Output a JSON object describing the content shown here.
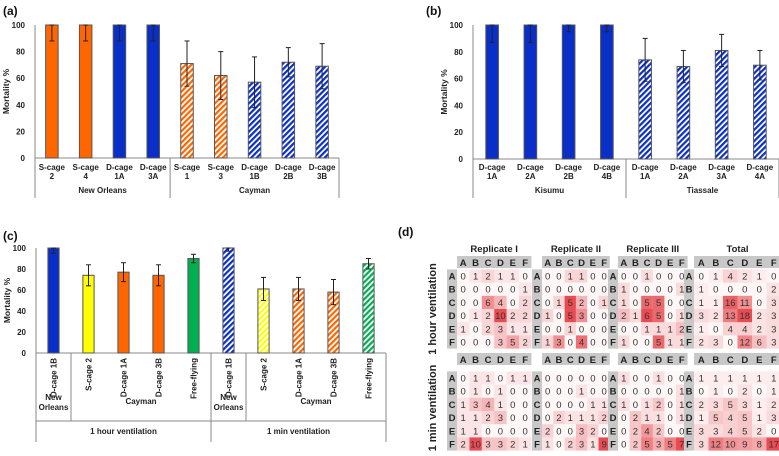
{
  "panel_labels": {
    "a": "(a)",
    "b": "(b)",
    "c": "(c)",
    "d": "(d)"
  },
  "colors": {
    "orange": "#ff6600",
    "blue": "#0a2fc8",
    "yellow": "#ffff00",
    "green": "#00b050",
    "heat": "#e5393f",
    "header_gray": "#c8c8c8"
  },
  "chart_data": [
    {
      "id": "a",
      "type": "bar",
      "ylabel": "Mortality %",
      "ylim": [
        0,
        100
      ],
      "yticks": [
        0,
        20,
        40,
        60,
        80,
        100
      ],
      "categories": [
        [
          "S-cage",
          "2"
        ],
        [
          "S-cage",
          "4"
        ],
        [
          "D-cage",
          "1A"
        ],
        [
          "D-cage",
          "3A"
        ],
        [
          "S-cage",
          "1"
        ],
        [
          "S-cage",
          "3"
        ],
        [
          "D-cage",
          "1B"
        ],
        [
          "D-cage",
          "2B"
        ],
        [
          "D-cage",
          "3B"
        ]
      ],
      "values": [
        100,
        100,
        100,
        100,
        71,
        62,
        57,
        72,
        69
      ],
      "errors": [
        12,
        12,
        12,
        12,
        17,
        18,
        19,
        11,
        17
      ],
      "colors": [
        "orange",
        "orange",
        "blue",
        "blue",
        "orange",
        "orange",
        "blue",
        "blue",
        "blue"
      ],
      "hatched": [
        false,
        false,
        false,
        false,
        true,
        true,
        true,
        true,
        true
      ],
      "groups": [
        {
          "label": [
            "New Orleans"
          ],
          "span": 4
        },
        {
          "label": [
            "Cayman"
          ],
          "span": 5
        }
      ]
    },
    {
      "id": "b",
      "type": "bar",
      "ylabel": "Mortality %",
      "ylim": [
        0,
        100
      ],
      "yticks": [
        0,
        20,
        40,
        60,
        80,
        100
      ],
      "categories": [
        [
          "D-cage",
          "1A"
        ],
        [
          "D-cage",
          "2A"
        ],
        [
          "D-cage",
          "2B"
        ],
        [
          "D-cage",
          "4B"
        ],
        [
          "D-cage",
          "1A"
        ],
        [
          "D-cage",
          "2A"
        ],
        [
          "D-cage",
          "3A"
        ],
        [
          "D-cage",
          "4A"
        ]
      ],
      "values": [
        100,
        100,
        100,
        100,
        74,
        69,
        81,
        70
      ],
      "errors": [
        13,
        13,
        5,
        5,
        16,
        12,
        12,
        11
      ],
      "colors": [
        "blue",
        "blue",
        "blue",
        "blue",
        "blue",
        "blue",
        "blue",
        "blue"
      ],
      "hatched": [
        false,
        false,
        false,
        false,
        true,
        true,
        true,
        true
      ],
      "groups": [
        {
          "label": [
            "Kisumu"
          ],
          "span": 4
        },
        {
          "label": [
            "Tiassale"
          ],
          "span": 4
        }
      ]
    },
    {
      "id": "c",
      "type": "bar",
      "ylabel": "Mortality %",
      "ylim": [
        0,
        100
      ],
      "yticks": [
        0,
        20,
        40,
        60,
        80,
        100
      ],
      "categories": [
        [
          "D-cage 1B"
        ],
        [
          "S-cage 2"
        ],
        [
          "D-cage 1A"
        ],
        [
          "D-cage 3B"
        ],
        [
          "Free-flying"
        ],
        [
          "D-cage 1B"
        ],
        [
          "S-cage 2"
        ],
        [
          "D-cage 1A"
        ],
        [
          "D-cage 3B"
        ],
        [
          "Free-flying"
        ]
      ],
      "values": [
        100,
        74,
        77,
        74,
        90,
        100,
        61,
        61,
        58,
        85
      ],
      "errors": [
        5,
        10,
        9,
        10,
        4,
        3,
        11,
        11,
        12,
        5
      ],
      "colors": [
        "blue",
        "yellow",
        "orange",
        "orange",
        "green",
        "blue",
        "yellow",
        "orange",
        "orange",
        "green"
      ],
      "hatched": [
        false,
        false,
        false,
        false,
        false,
        true,
        true,
        true,
        true,
        true
      ],
      "groups": [
        {
          "label": [
            "New",
            "Orleans"
          ],
          "span": 1
        },
        {
          "label": [
            "Cayman"
          ],
          "span": 4
        },
        {
          "label": [
            "New",
            "Orleans"
          ],
          "span": 1
        },
        {
          "label": [
            "Cayman"
          ],
          "span": 4
        }
      ],
      "supergroups": [
        {
          "label": "1 hour ventilation",
          "span": 5
        },
        {
          "label": "1 min ventilation",
          "span": 5
        }
      ]
    },
    {
      "id": "d",
      "type": "heatmap",
      "rows": [
        "A",
        "B",
        "C",
        "D",
        "E",
        "F"
      ],
      "cols": [
        "A",
        "B",
        "C",
        "D",
        "E",
        "F"
      ],
      "block_titles": [
        "Replicate I",
        "Replicate II",
        "Replicate III",
        "Total"
      ],
      "sections": [
        {
          "label": "1 hour ventilation",
          "blocks": [
            [
              [
                0,
                1,
                2,
                1,
                1,
                0
              ],
              [
                0,
                0,
                0,
                0,
                0,
                1
              ],
              [
                0,
                0,
                6,
                4,
                0,
                2
              ],
              [
                0,
                1,
                2,
                10,
                2,
                2
              ],
              [
                1,
                0,
                2,
                3,
                1,
                1
              ],
              [
                0,
                0,
                0,
                3,
                5,
                2
              ]
            ],
            [
              [
                0,
                0,
                1,
                1,
                0,
                0
              ],
              [
                0,
                0,
                0,
                0,
                0,
                0
              ],
              [
                0,
                1,
                5,
                2,
                0,
                1
              ],
              [
                1,
                0,
                5,
                3,
                0,
                0
              ],
              [
                0,
                0,
                1,
                0,
                0,
                0
              ],
              [
                1,
                3,
                0,
                4,
                0,
                0
              ]
            ],
            [
              [
                0,
                0,
                1,
                0,
                0,
                0
              ],
              [
                1,
                0,
                0,
                0,
                0,
                1
              ],
              [
                1,
                0,
                5,
                5,
                0,
                0
              ],
              [
                2,
                1,
                6,
                5,
                0,
                1
              ],
              [
                0,
                0,
                1,
                1,
                1,
                2
              ],
              [
                1,
                0,
                0,
                5,
                1,
                1
              ]
            ],
            [
              [
                0,
                1,
                4,
                2,
                1,
                0
              ],
              [
                1,
                0,
                0,
                0,
                0,
                2
              ],
              [
                1,
                1,
                16,
                11,
                0,
                3
              ],
              [
                3,
                2,
                13,
                18,
                2,
                3
              ],
              [
                1,
                0,
                4,
                4,
                2,
                3
              ],
              [
                2,
                3,
                0,
                12,
                6,
                3
              ]
            ]
          ]
        },
        {
          "label": "1 min ventilation",
          "blocks": [
            [
              [
                0,
                1,
                1,
                0,
                1,
                1
              ],
              [
                0,
                1,
                0,
                1,
                0,
                0
              ],
              [
                1,
                3,
                4,
                1,
                0,
                0
              ],
              [
                1,
                1,
                2,
                3,
                0,
                0
              ],
              [
                1,
                1,
                0,
                0,
                0,
                0
              ],
              [
                2,
                10,
                3,
                3,
                2,
                1
              ]
            ],
            [
              [
                0,
                0,
                0,
                0,
                0,
                0
              ],
              [
                0,
                0,
                0,
                1,
                0,
                0
              ],
              [
                0,
                0,
                0,
                0,
                1,
                1
              ],
              [
                0,
                2,
                1,
                1,
                1,
                2
              ],
              [
                2,
                0,
                0,
                3,
                2,
                0
              ],
              [
                1,
                0,
                2,
                3,
                1,
                9
              ]
            ],
            [
              [
                1,
                0,
                0,
                1,
                0,
                0
              ],
              [
                0,
                0,
                0,
                0,
                0,
                1
              ],
              [
                1,
                0,
                1,
                2,
                0,
                1
              ],
              [
                0,
                2,
                1,
                1,
                0,
                1
              ],
              [
                0,
                2,
                4,
                2,
                0,
                0
              ],
              [
                0,
                2,
                5,
                3,
                5,
                7
              ]
            ],
            [
              [
                1,
                1,
                1,
                1,
                1,
                1
              ],
              [
                0,
                1,
                0,
                2,
                0,
                1
              ],
              [
                2,
                3,
                5,
                3,
                1,
                2
              ],
              [
                1,
                5,
                4,
                5,
                1,
                3
              ],
              [
                3,
                3,
                4,
                5,
                2,
                0
              ],
              [
                3,
                12,
                10,
                9,
                8,
                17
              ]
            ]
          ]
        }
      ]
    }
  ]
}
